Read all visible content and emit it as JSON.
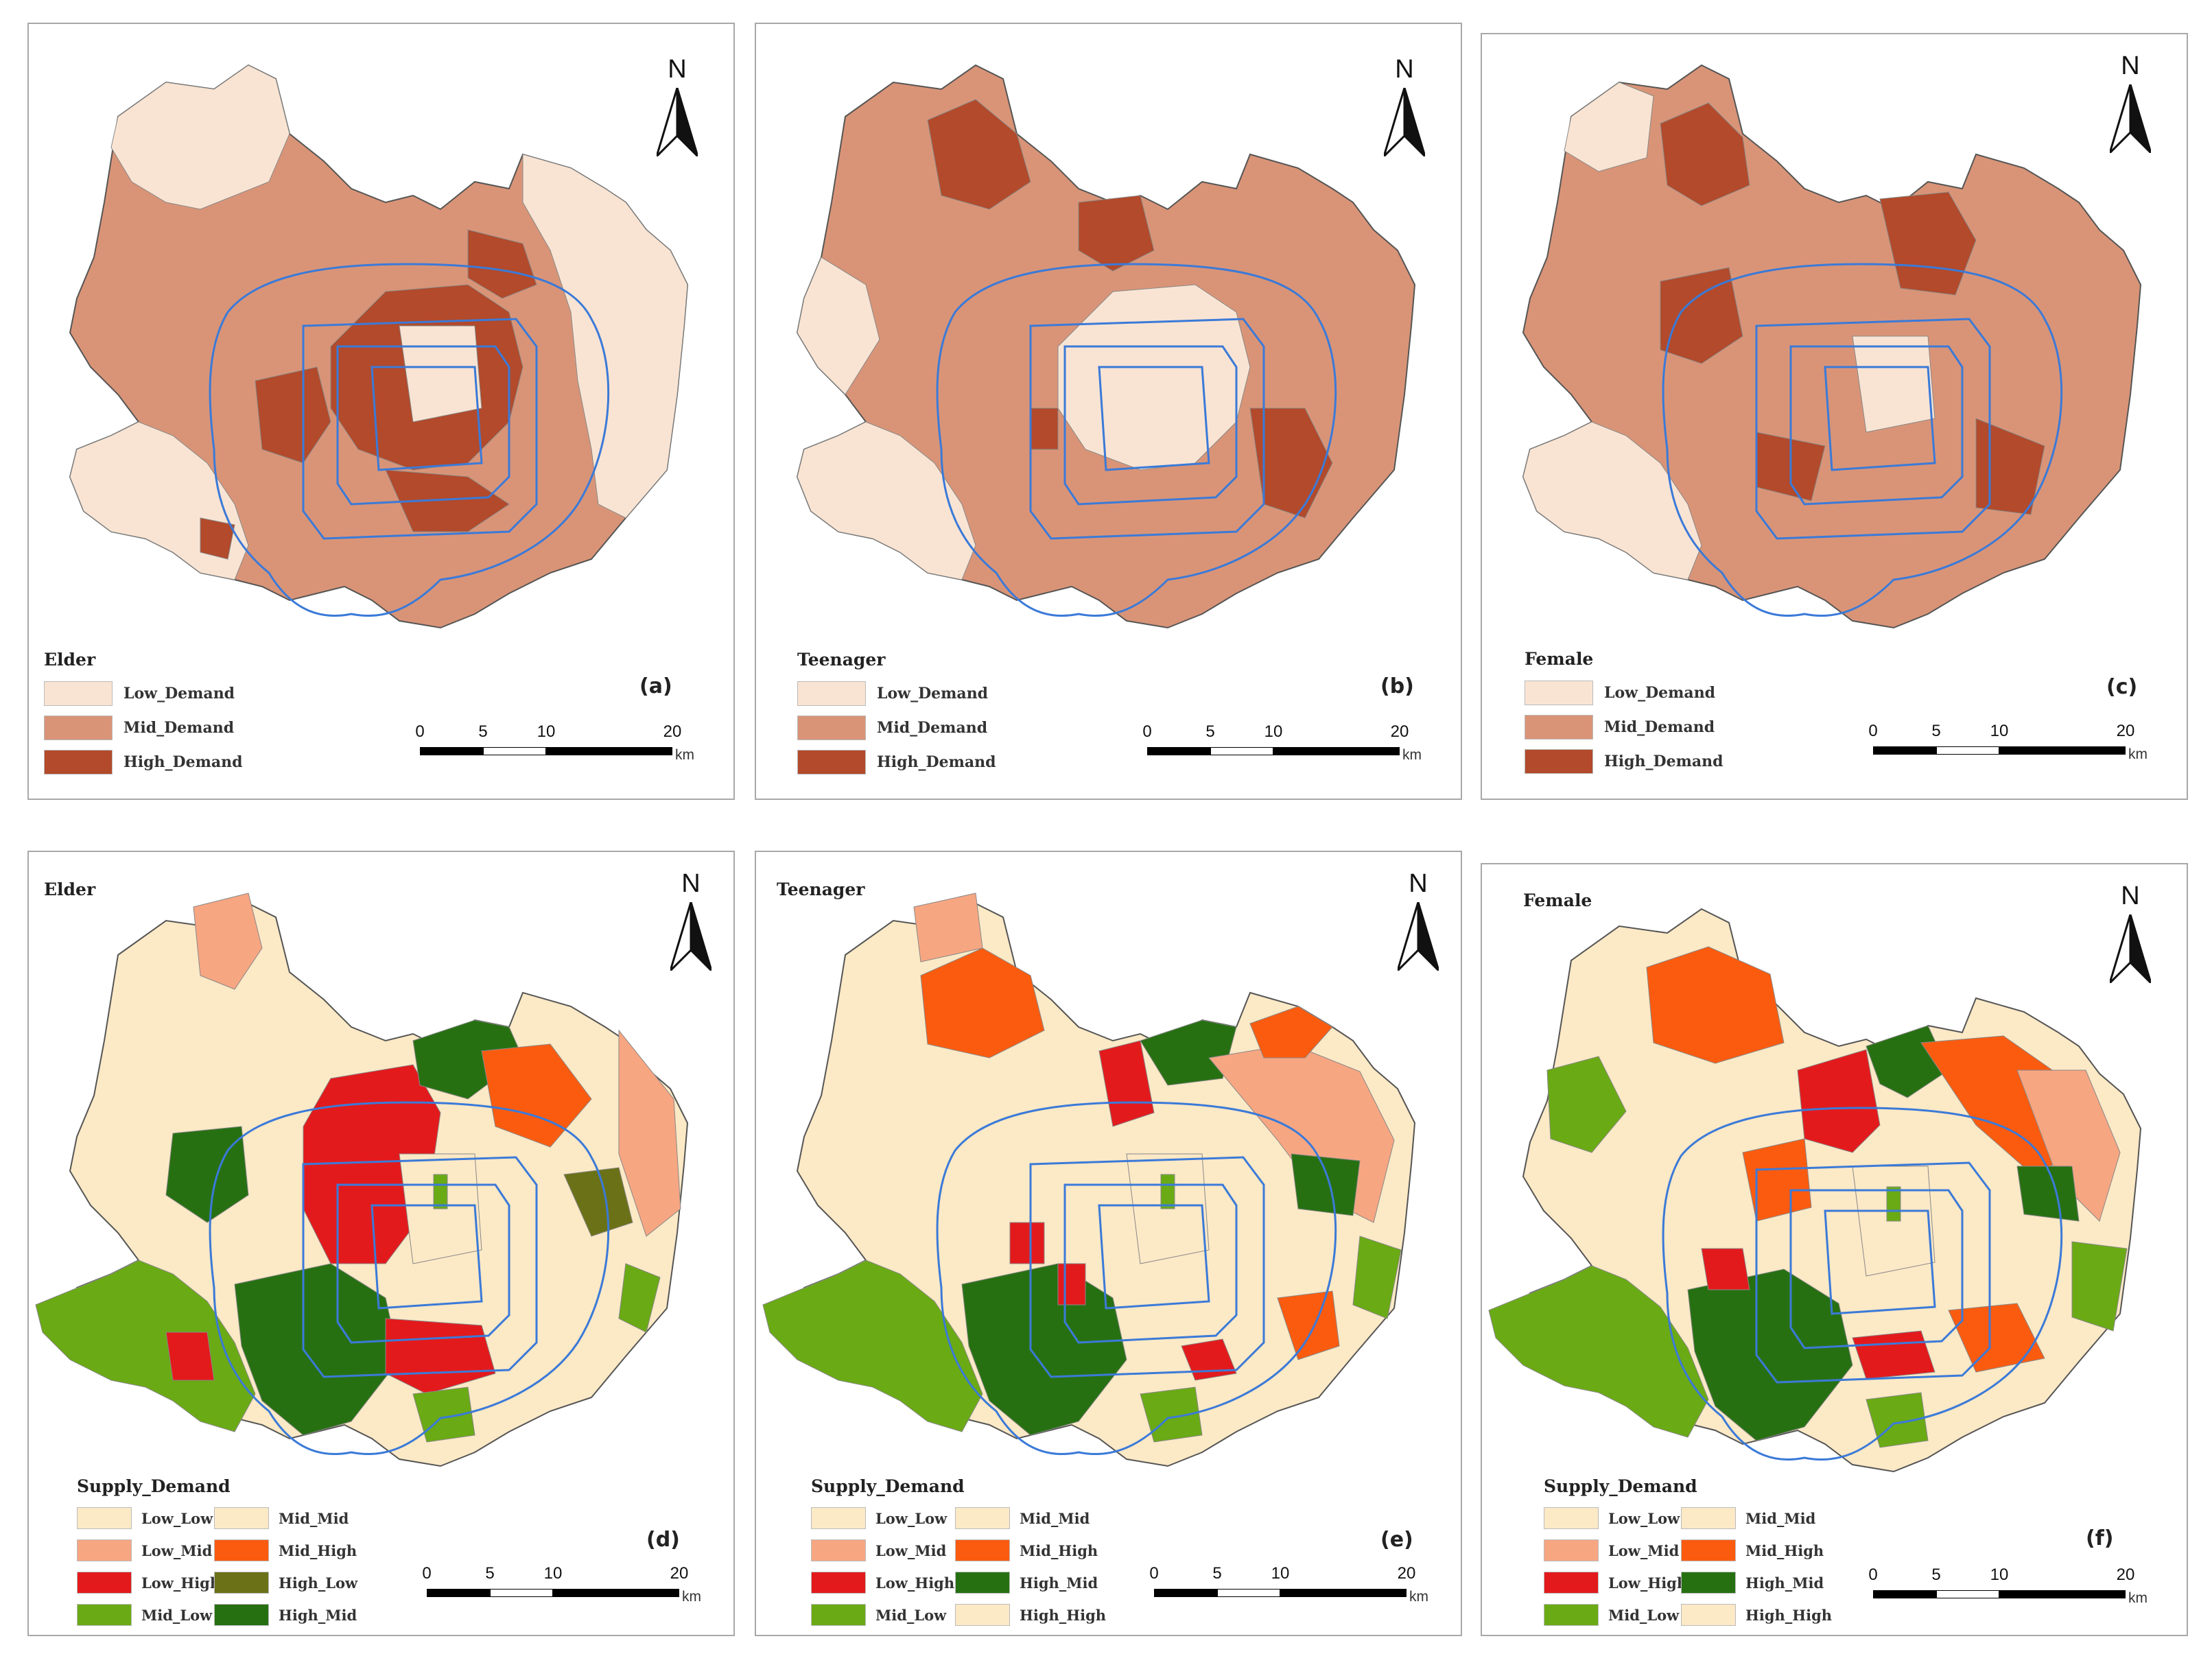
{
  "north_label": "N",
  "scale": {
    "ticks": [
      "0",
      "5",
      "10",
      "20"
    ],
    "unit": "km"
  },
  "colors": {
    "low_demand": "#f9e4d3",
    "mid_demand": "#d99477",
    "high_demand": "#b24a2b",
    "low_low": "#fce9c6",
    "low_mid": "#f7a682",
    "low_high": "#e31a1c",
    "mid_low": "#6aaa14",
    "mid_mid": "#fce9c6",
    "mid_high": "#fb5b0f",
    "high_low": "#6b7116",
    "high_mid": "#277012",
    "high_high": "#fce9c6",
    "ring_road": "#3b7ad8",
    "border": "#555555"
  },
  "panels": [
    {
      "label": "(a)",
      "legend_title": "Elder",
      "kind": "demand",
      "legend": [
        "Low_Demand",
        "Mid_Demand",
        "High_Demand"
      ]
    },
    {
      "label": "(b)",
      "legend_title": "Teenager",
      "kind": "demand",
      "legend": [
        "Low_Demand",
        "Mid_Demand",
        "High_Demand"
      ]
    },
    {
      "label": "(c)",
      "legend_title": "Female",
      "kind": "demand",
      "legend": [
        "Low_Demand",
        "Mid_Demand",
        "High_Demand"
      ]
    },
    {
      "label": "(d)",
      "title": "Elder",
      "legend_title": "Supply_Demand",
      "kind": "sd",
      "legend_left": [
        "Low_Low",
        "Low_Mid",
        "Low_High",
        "Mid_Low"
      ],
      "legend_right": [
        "Mid_Mid",
        "Mid_High",
        "High_Low",
        "High_Mid"
      ]
    },
    {
      "label": "(e)",
      "title": "Teenager",
      "legend_title": "Supply_Demand",
      "kind": "sd",
      "legend_left": [
        "Low_Low",
        "Low_Mid",
        "Low_High",
        "Mid_Low"
      ],
      "legend_right": [
        "Mid_Mid",
        "Mid_High",
        "High_Mid",
        "High_High"
      ]
    },
    {
      "label": "(f)",
      "title": "Female",
      "legend_title": "Supply_Demand",
      "kind": "sd",
      "legend_left": [
        "Low_Low",
        "Low_Mid",
        "Low_High",
        "Mid_Low"
      ],
      "legend_right": [
        "Mid_Mid",
        "Mid_High",
        "High_Mid",
        "High_High"
      ]
    }
  ]
}
